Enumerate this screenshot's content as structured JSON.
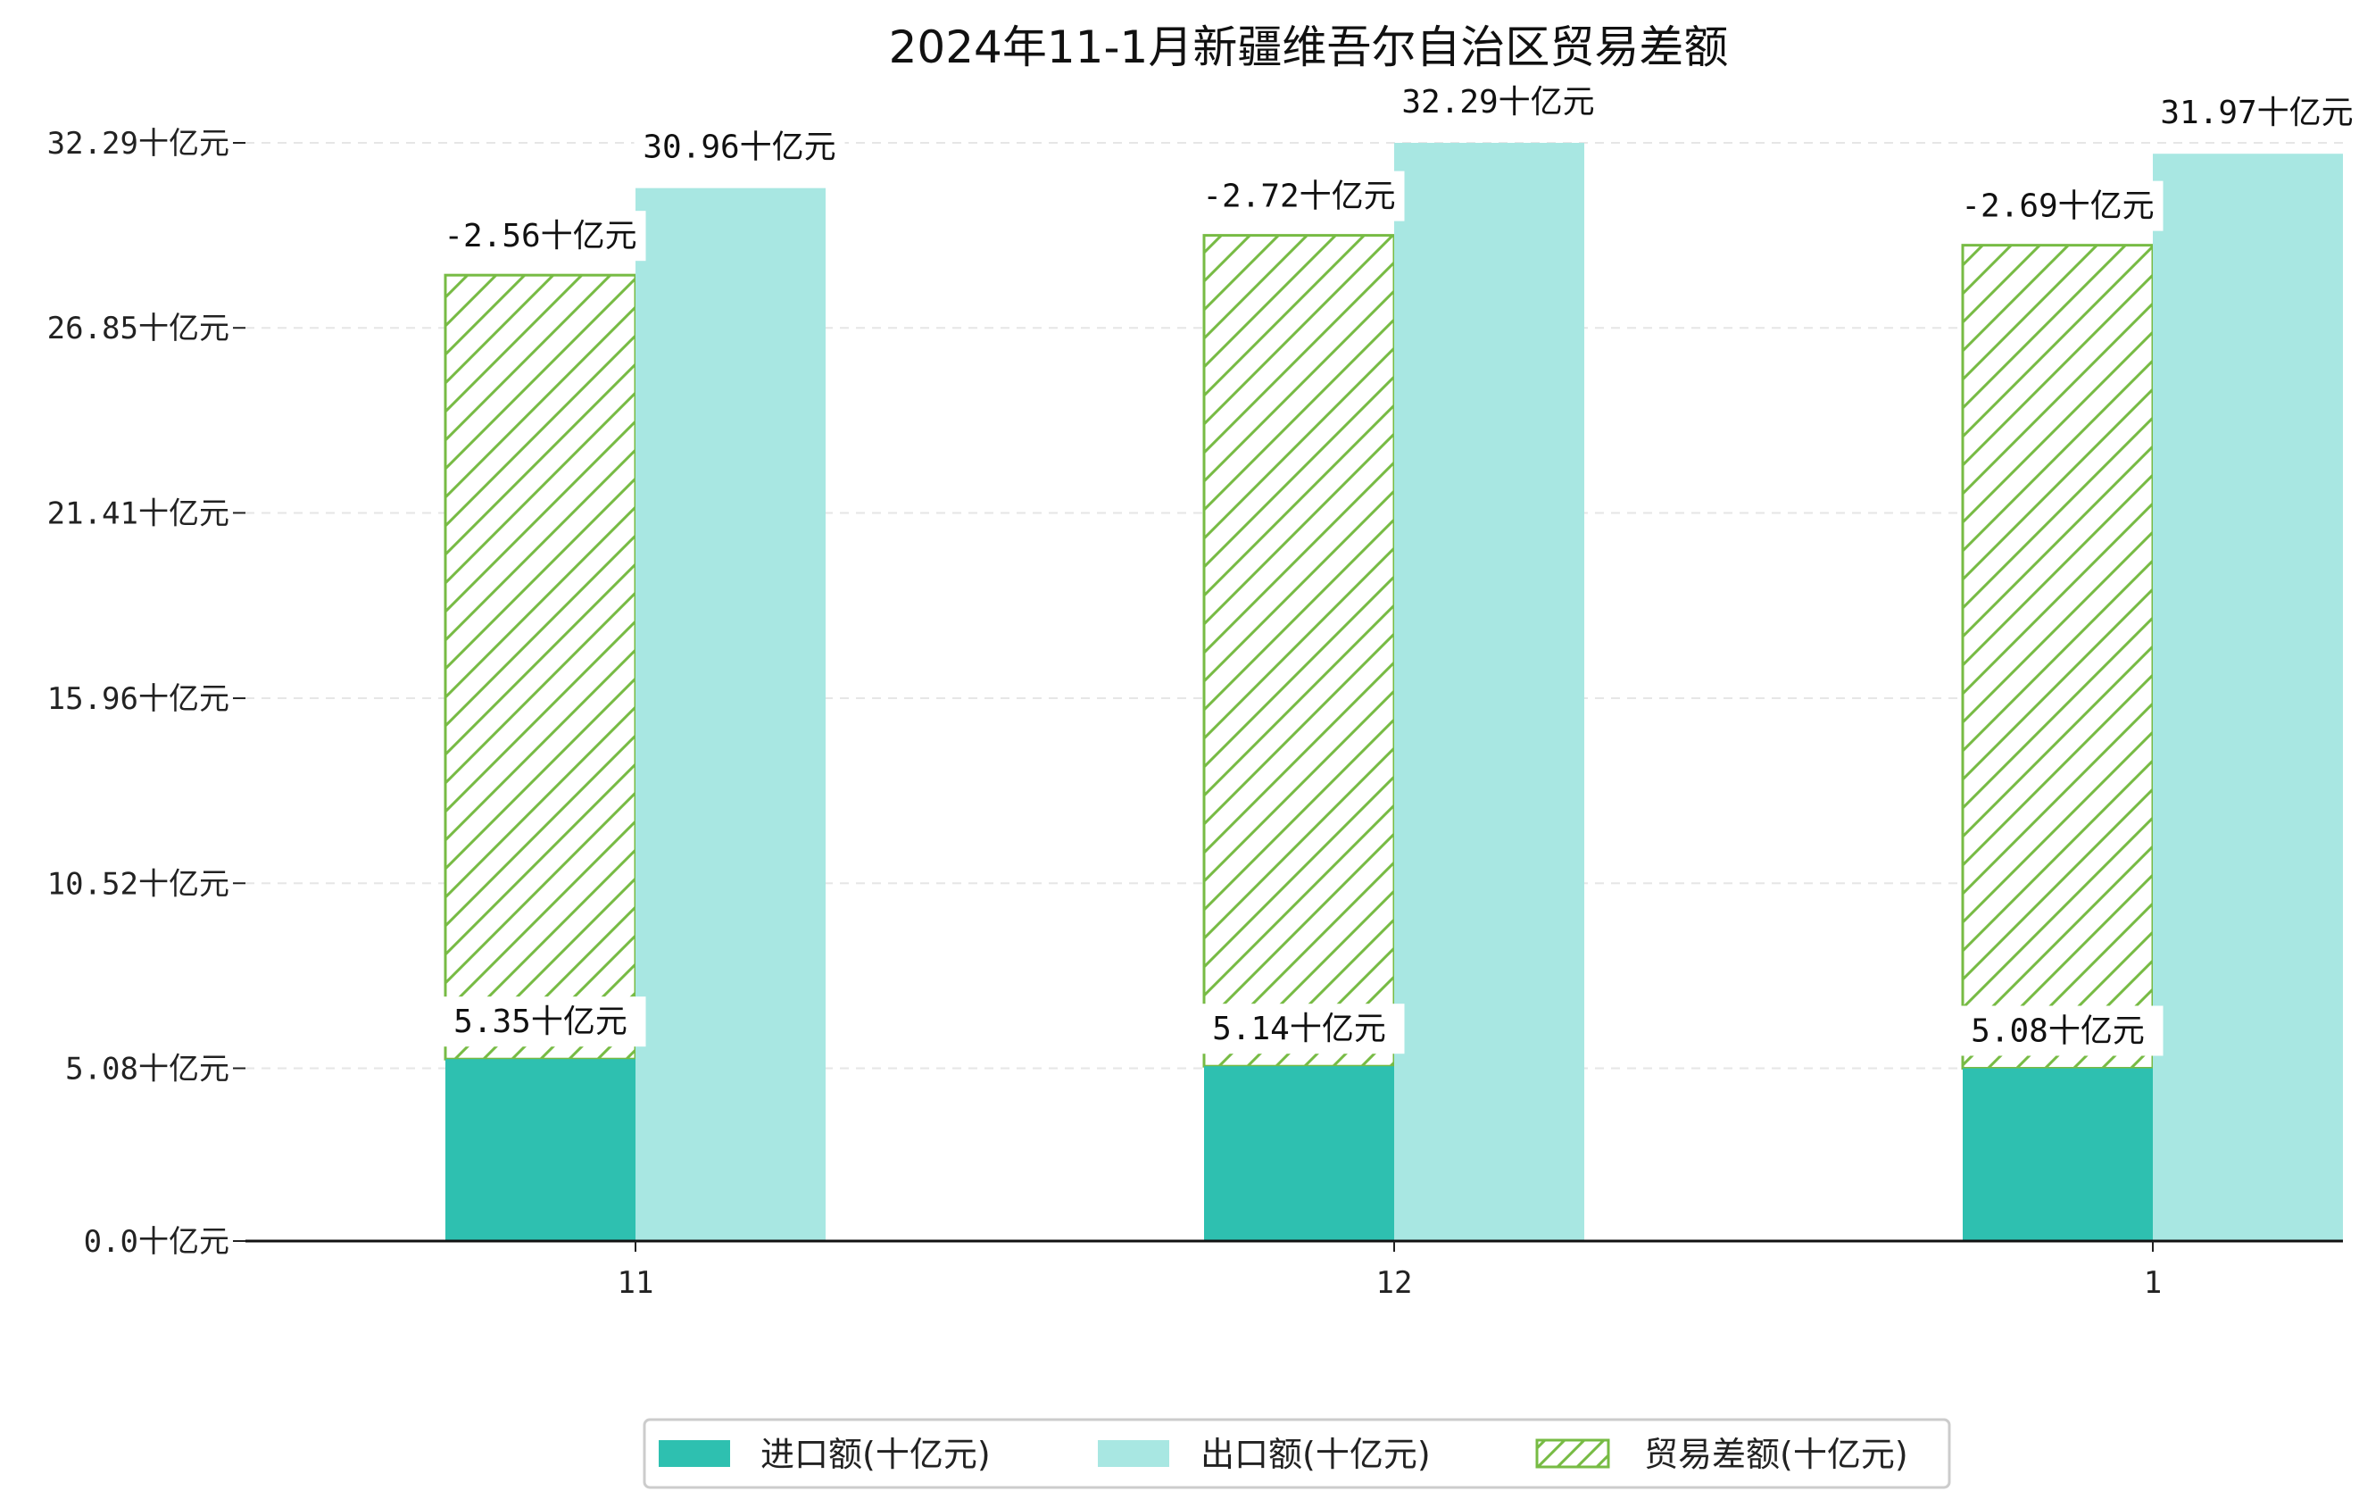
{
  "chart_data": {
    "type": "bar",
    "title": "2024年11-1月新疆维吾尔自治区贸易差额",
    "categories": [
      "11",
      "12",
      "1"
    ],
    "series": [
      {
        "name": "进口额(十亿元)",
        "values": [
          5.35,
          5.14,
          5.08
        ],
        "color": "#2ec0b0"
      },
      {
        "name": "出口额(十亿元)",
        "values": [
          30.96,
          32.29,
          31.97
        ],
        "color": "#a8e7e2"
      },
      {
        "name": "贸易差额(十亿元)",
        "values": [
          -2.56,
          -2.72,
          -2.69
        ],
        "color": "#77bb44",
        "hatch": true
      }
    ],
    "data_labels": {
      "imports": [
        "5.35十亿元",
        "5.14十亿元",
        "5.08十亿元"
      ],
      "exports": [
        "30.96十亿元",
        "32.29十亿元",
        "31.97十亿元"
      ],
      "balance": [
        "-2.56十亿元",
        "-2.72十亿元",
        "-2.69十亿元"
      ]
    },
    "y_ticks": [
      "0.0十亿元",
      "5.08十亿元",
      "10.52十亿元",
      "15.96十亿元",
      "21.41十亿元",
      "26.85十亿元",
      "32.29十亿元"
    ],
    "y_tick_values": [
      0,
      5.08,
      10.52,
      15.96,
      21.41,
      26.85,
      32.29
    ],
    "ylim": [
      0,
      32.29
    ],
    "xlabel": "",
    "ylabel": "",
    "grid": "y-dashed",
    "legend": "bottom-center"
  }
}
